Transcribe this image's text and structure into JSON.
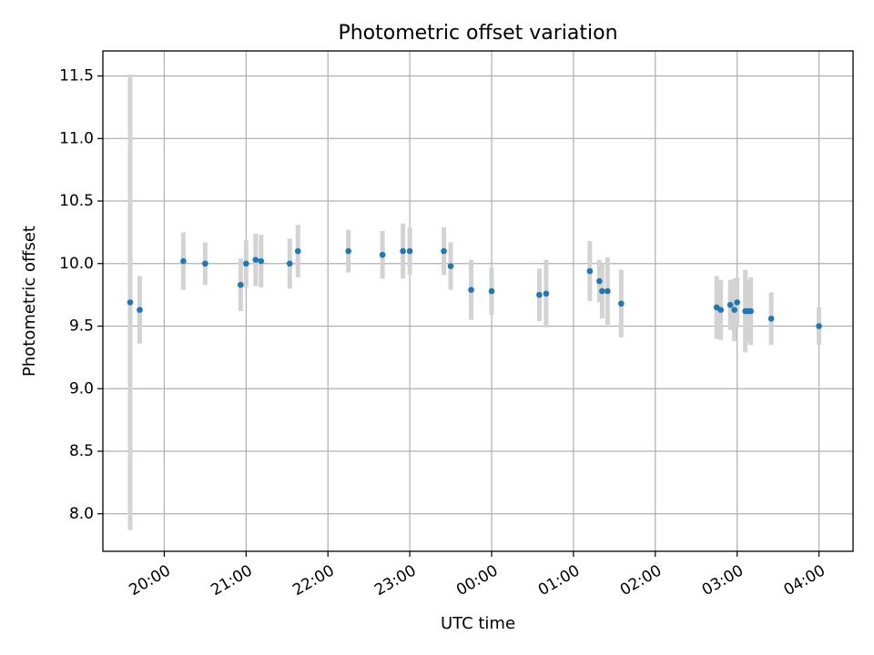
{
  "chart_data": {
    "type": "scatter",
    "title": "Photometric offset variation",
    "xlabel": "UTC time",
    "ylabel": "Photometric offset",
    "xlim": [
      "19:15",
      "04:25"
    ],
    "ylim": [
      7.7,
      11.7
    ],
    "grid": true,
    "x_ticks": [
      "20:00",
      "21:00",
      "22:00",
      "23:00",
      "00:00",
      "01:00",
      "02:00",
      "03:00",
      "04:00"
    ],
    "y_ticks": [
      "8.0",
      "8.5",
      "9.0",
      "9.5",
      "10.0",
      "10.5",
      "11.0",
      "11.5"
    ],
    "colors": {
      "point": "#1f77b4",
      "errorbar": "#d3d3d3",
      "grid": "#b0b0b0"
    },
    "points": [
      {
        "t": "19:35",
        "y": 9.69,
        "err": 1.82
      },
      {
        "t": "19:42",
        "y": 9.63,
        "err": 0.27
      },
      {
        "t": "20:14",
        "y": 10.02,
        "err": 0.23
      },
      {
        "t": "20:30",
        "y": 10.0,
        "err": 0.17
      },
      {
        "t": "20:56",
        "y": 9.83,
        "err": 0.21
      },
      {
        "t": "21:00",
        "y": 10.0,
        "err": 0.19
      },
      {
        "t": "21:07",
        "y": 10.03,
        "err": 0.21
      },
      {
        "t": "21:11",
        "y": 10.02,
        "err": 0.21
      },
      {
        "t": "21:32",
        "y": 10.0,
        "err": 0.2
      },
      {
        "t": "21:38",
        "y": 10.1,
        "err": 0.21
      },
      {
        "t": "22:15",
        "y": 10.1,
        "err": 0.17
      },
      {
        "t": "22:40",
        "y": 10.07,
        "err": 0.19
      },
      {
        "t": "22:55",
        "y": 10.1,
        "err": 0.22
      },
      {
        "t": "23:00",
        "y": 10.1,
        "err": 0.19
      },
      {
        "t": "23:25",
        "y": 10.1,
        "err": 0.19
      },
      {
        "t": "23:30",
        "y": 9.98,
        "err": 0.19
      },
      {
        "t": "23:45",
        "y": 9.79,
        "err": 0.24
      },
      {
        "t": "00:00",
        "y": 9.78,
        "err": 0.19
      },
      {
        "t": "00:35",
        "y": 9.75,
        "err": 0.21
      },
      {
        "t": "00:40",
        "y": 9.76,
        "err": 0.27
      },
      {
        "t": "01:12",
        "y": 9.94,
        "err": 0.24
      },
      {
        "t": "01:19",
        "y": 9.86,
        "err": 0.17
      },
      {
        "t": "01:21",
        "y": 9.78,
        "err": 0.22
      },
      {
        "t": "01:25",
        "y": 9.78,
        "err": 0.27
      },
      {
        "t": "01:35",
        "y": 9.68,
        "err": 0.27
      },
      {
        "t": "02:45",
        "y": 9.65,
        "err": 0.25
      },
      {
        "t": "02:48",
        "y": 9.63,
        "err": 0.24
      },
      {
        "t": "02:55",
        "y": 9.67,
        "err": 0.2
      },
      {
        "t": "02:58",
        "y": 9.63,
        "err": 0.25
      },
      {
        "t": "03:00",
        "y": 9.69,
        "err": 0.2
      },
      {
        "t": "03:06",
        "y": 9.62,
        "err": 0.33
      },
      {
        "t": "03:08",
        "y": 9.62,
        "err": 0.25
      },
      {
        "t": "03:10",
        "y": 9.62,
        "err": 0.27
      },
      {
        "t": "03:25",
        "y": 9.56,
        "err": 0.21
      },
      {
        "t": "04:00",
        "y": 9.5,
        "err": 0.15
      }
    ]
  }
}
